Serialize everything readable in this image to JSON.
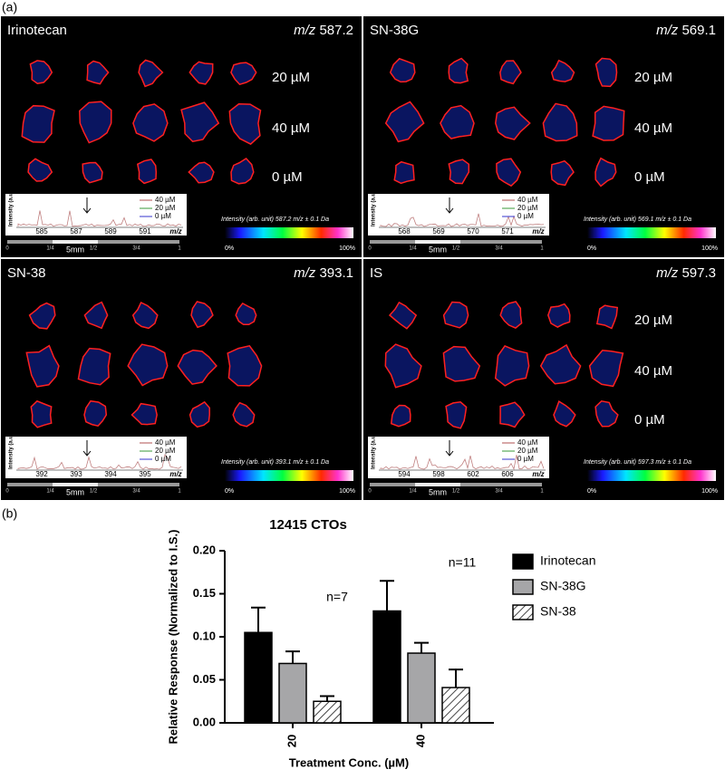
{
  "figure": {
    "label_a": "(a)",
    "label_b": "(b)",
    "panels": [
      {
        "name": "Irinotecan",
        "mz_label": "m/z",
        "mz": "587.2",
        "concentrations": [
          "20 µM",
          "40 µM",
          "0 µM"
        ],
        "spectrum": {
          "ylabel": "Intensity (a.u.)",
          "legend": [
            "40 µM",
            "20 µM",
            "0 µM"
          ],
          "ticks": [
            "585",
            "587",
            "589",
            "591"
          ],
          "axis_label": "m/z"
        },
        "scale_bar": "5mm",
        "ruler": [
          "0",
          "1/4",
          "1/2",
          "3/4",
          "1"
        ],
        "colorbar": {
          "label": "Intensity (arb. unit) 587.2 m/z ± 0.1 Da",
          "min": "0%",
          "max": "100%"
        }
      },
      {
        "name": "SN-38G",
        "mz_label": "m/z",
        "mz": "569.1",
        "concentrations": [
          "20 µM",
          "40 µM",
          "0 µM"
        ],
        "spectrum": {
          "ylabel": "Intensity (a.u.)",
          "legend": [
            "40 µM",
            "20 µM",
            "0 µM"
          ],
          "ticks": [
            "568",
            "569",
            "570",
            "571"
          ],
          "axis_label": "m/z"
        },
        "scale_bar": "5mm",
        "ruler": [
          "0",
          "1/4",
          "1/2",
          "3/4",
          "1"
        ],
        "colorbar": {
          "label": "Intensity (arb. unit) 569.1 m/z ± 0.1 Da",
          "min": "0%",
          "max": "100%"
        }
      },
      {
        "name": "SN-38",
        "mz_label": "m/z",
        "mz": "393.1",
        "concentrations": [],
        "spectrum": {
          "ylabel": "Intensity (a.u.)",
          "legend": [
            "40 µM",
            "20 µM",
            "0 µM"
          ],
          "ticks": [
            "392",
            "393",
            "394",
            "395"
          ],
          "axis_label": "m/z"
        },
        "scale_bar": "5mm",
        "ruler": [
          "0",
          "1/4",
          "1/2",
          "3/4",
          "1"
        ],
        "colorbar": {
          "label": "Intensity (arb. unit) 393.1 m/z ± 0.1 Da",
          "min": "0%",
          "max": "100%"
        }
      },
      {
        "name": "IS",
        "mz_label": "m/z",
        "mz": "597.3",
        "concentrations": [
          "20 µM",
          "40 µM",
          "0 µM"
        ],
        "spectrum": {
          "ylabel": "Intensity (a.u.)",
          "legend": [
            "40 µM",
            "20 µM",
            "0 µM"
          ],
          "ticks": [
            "594",
            "598",
            "602",
            "606"
          ],
          "axis_label": "m/z"
        },
        "scale_bar": "5mm",
        "ruler": [
          "0",
          "1/4",
          "1/2",
          "3/4",
          "1"
        ],
        "colorbar": {
          "label": "Intensity (arb. unit) 597.3 m/z ± 0.1 Da",
          "min": "0%",
          "max": "100%"
        }
      }
    ]
  },
  "chart_data": {
    "type": "bar",
    "title": "12415 CTOs",
    "x_label": "Treatment Conc. (µM)",
    "y_label": "Relative Response (Normalized to I.S.)",
    "categories": [
      "20",
      "40"
    ],
    "series": [
      {
        "name": "Irinotecan",
        "color": "#000000",
        "values": [
          0.105,
          0.13
        ],
        "errors": [
          0.029,
          0.035
        ]
      },
      {
        "name": "SN-38G",
        "color": "#a6a6a8",
        "values": [
          0.069,
          0.081
        ],
        "errors": [
          0.014,
          0.012
        ]
      },
      {
        "name": "SN-38",
        "color": "#ffffff",
        "hatch": true,
        "values": [
          0.025,
          0.041
        ],
        "errors": [
          0.006,
          0.021
        ]
      }
    ],
    "annotations": [
      "n=7",
      "n=11"
    ],
    "ylim": [
      0,
      0.2
    ],
    "yticks": [
      {
        "value": 0,
        "label": "0.00"
      },
      {
        "value": 0.05,
        "label": "0.05"
      },
      {
        "value": 0.1,
        "label": "0.10"
      },
      {
        "value": 0.15,
        "label": "0.15"
      },
      {
        "value": 0.2,
        "label": "0.20"
      }
    ]
  }
}
